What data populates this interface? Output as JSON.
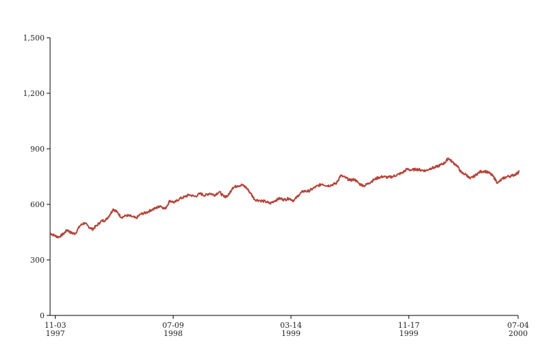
{
  "chart_data": {
    "type": "line",
    "title": "",
    "xlabel": "",
    "ylabel": "",
    "ylim": [
      0,
      1500
    ],
    "y_ticks": [
      0,
      300,
      600,
      900,
      1200,
      1500
    ],
    "y_tick_labels": [
      "0",
      "300",
      "600",
      "900",
      "1,200",
      "1,500"
    ],
    "xlim": [
      "1997-10-23",
      "2000-07-04"
    ],
    "x_ticks": [
      {
        "date": "1997-11-03",
        "line1": "11-03",
        "line2": "1997"
      },
      {
        "date": "1998-07-09",
        "line1": "07-09",
        "line2": "1998"
      },
      {
        "date": "1999-03-14",
        "line1": "03-14",
        "line2": "1999"
      },
      {
        "date": "1999-11-17",
        "line1": "11-17",
        "line2": "1999"
      },
      {
        "date": "2000-07-04",
        "line1": "07-04",
        "line2": "2000"
      }
    ],
    "grid": false,
    "series": [
      {
        "color": "#b5443b",
        "points": [
          [
            "1997-10-23",
            445
          ],
          [
            "1997-11-01",
            432
          ],
          [
            "1997-11-10",
            423
          ],
          [
            "1997-11-20",
            440
          ],
          [
            "1997-11-28",
            462
          ],
          [
            "1997-12-07",
            445
          ],
          [
            "1997-12-15",
            442
          ],
          [
            "1997-12-25",
            485
          ],
          [
            "1998-01-03",
            500
          ],
          [
            "1998-01-12",
            480
          ],
          [
            "1998-01-20",
            465
          ],
          [
            "1998-01-29",
            485
          ],
          [
            "1998-02-08",
            510
          ],
          [
            "1998-02-17",
            515
          ],
          [
            "1998-02-26",
            545
          ],
          [
            "1998-03-05",
            575
          ],
          [
            "1998-03-13",
            558
          ],
          [
            "1998-03-22",
            530
          ],
          [
            "1998-04-02",
            540
          ],
          [
            "1998-04-12",
            535
          ],
          [
            "1998-04-22",
            525
          ],
          [
            "1998-05-02",
            548
          ],
          [
            "1998-05-13",
            555
          ],
          [
            "1998-05-24",
            570
          ],
          [
            "1998-06-03",
            580
          ],
          [
            "1998-06-12",
            592
          ],
          [
            "1998-06-22",
            575
          ],
          [
            "1998-07-02",
            620
          ],
          [
            "1998-07-12",
            610
          ],
          [
            "1998-07-22",
            630
          ],
          [
            "1998-08-02",
            640
          ],
          [
            "1998-08-12",
            652
          ],
          [
            "1998-08-24",
            642
          ],
          [
            "1998-09-04",
            658
          ],
          [
            "1998-09-14",
            648
          ],
          [
            "1998-09-24",
            660
          ],
          [
            "1998-10-04",
            650
          ],
          [
            "1998-10-14",
            668
          ],
          [
            "1998-10-24",
            640
          ],
          [
            "1998-11-02",
            648
          ],
          [
            "1998-11-11",
            690
          ],
          [
            "1998-11-21",
            700
          ],
          [
            "1998-12-01",
            705
          ],
          [
            "1998-12-10",
            690
          ],
          [
            "1998-12-19",
            660
          ],
          [
            "1998-12-28",
            625
          ],
          [
            "1999-01-09",
            620
          ],
          [
            "1999-01-19",
            615
          ],
          [
            "1999-01-29",
            605
          ],
          [
            "1999-02-08",
            620
          ],
          [
            "1999-02-18",
            632
          ],
          [
            "1999-02-28",
            625
          ],
          [
            "1999-03-10",
            632
          ],
          [
            "1999-03-20",
            620
          ],
          [
            "1999-03-30",
            650
          ],
          [
            "1999-04-09",
            672
          ],
          [
            "1999-04-19",
            670
          ],
          [
            "1999-04-29",
            685
          ],
          [
            "1999-05-09",
            700
          ],
          [
            "1999-05-19",
            710
          ],
          [
            "1999-05-29",
            700
          ],
          [
            "1999-06-08",
            705
          ],
          [
            "1999-06-18",
            715
          ],
          [
            "1999-06-26",
            755
          ],
          [
            "1999-07-06",
            745
          ],
          [
            "1999-07-16",
            730
          ],
          [
            "1999-07-26",
            735
          ],
          [
            "1999-08-05",
            710
          ],
          [
            "1999-08-15",
            700
          ],
          [
            "1999-08-25",
            715
          ],
          [
            "1999-09-04",
            732
          ],
          [
            "1999-09-14",
            745
          ],
          [
            "1999-09-24",
            750
          ],
          [
            "1999-10-04",
            745
          ],
          [
            "1999-10-14",
            750
          ],
          [
            "1999-10-24",
            760
          ],
          [
            "1999-11-03",
            770
          ],
          [
            "1999-11-13",
            790
          ],
          [
            "1999-11-23",
            785
          ],
          [
            "1999-12-03",
            790
          ],
          [
            "1999-12-13",
            785
          ],
          [
            "1999-12-23",
            782
          ],
          [
            "2000-01-02",
            795
          ],
          [
            "2000-01-12",
            800
          ],
          [
            "2000-01-22",
            812
          ],
          [
            "2000-02-01",
            825
          ],
          [
            "2000-02-08",
            850
          ],
          [
            "2000-02-16",
            830
          ],
          [
            "2000-02-26",
            810
          ],
          [
            "2000-03-07",
            770
          ],
          [
            "2000-03-17",
            760
          ],
          [
            "2000-03-25",
            738
          ],
          [
            "2000-04-04",
            755
          ],
          [
            "2000-04-14",
            775
          ],
          [
            "2000-04-24",
            780
          ],
          [
            "2000-05-04",
            770
          ],
          [
            "2000-05-13",
            750
          ],
          [
            "2000-05-22",
            715
          ],
          [
            "2000-06-01",
            738
          ],
          [
            "2000-06-11",
            750
          ],
          [
            "2000-06-21",
            755
          ],
          [
            "2000-07-01",
            765
          ],
          [
            "2000-07-06",
            778
          ]
        ]
      }
    ]
  }
}
